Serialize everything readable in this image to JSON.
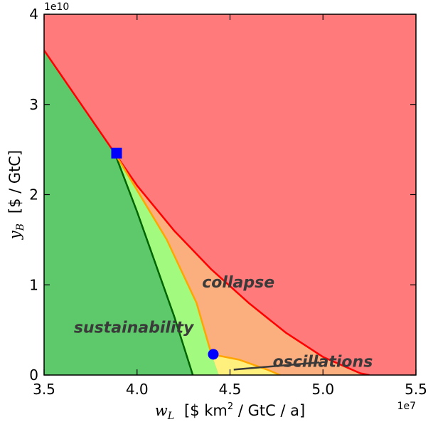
{
  "chart_data": {
    "type": "area",
    "title": "",
    "xlim": [
      35000000.0,
      55000000.0
    ],
    "ylim": [
      0,
      40000000000.0
    ],
    "xscale": "linear",
    "yscale": "linear",
    "grid": false,
    "xlabel": {
      "var": "w",
      "sub": "L",
      "text": "[$ km",
      "sup": "2",
      "rest": " / GtC / a]"
    },
    "ylabel": {
      "var": "y",
      "sub": "B",
      "text": "[$ / GtC]"
    },
    "x_ticks": {
      "values": [
        35000000.0,
        40000000.0,
        45000000.0,
        50000000.0,
        55000000.0
      ],
      "labels": [
        "3.5",
        "4.0",
        "4.5",
        "5.0",
        "5.5"
      ],
      "exponent_label": "1e7"
    },
    "y_ticks": {
      "values": [
        0,
        10000000000.0,
        20000000000.0,
        30000000000.0,
        40000000000.0
      ],
      "labels": [
        "0",
        "1",
        "2",
        "3",
        "4"
      ],
      "exponent_label": "1e10"
    },
    "colors": {
      "collapse": "#ff7b7b",
      "sustainability": "#5ec96a",
      "light_green": "#a2fb7e",
      "orange": "#fbae7e",
      "yellow": "#fff07e",
      "red_line": "#ff0000",
      "dark_green_line": "#006400",
      "orange_line": "#ffa500",
      "marker": "#0000ff",
      "annotation_line": "#3a3a3a"
    },
    "regions": [
      {
        "name": "collapse",
        "color_key": "collapse",
        "polygon": [
          [
            35000000.0,
            40000000000.0
          ],
          [
            55000000.0,
            40000000000.0
          ],
          [
            55000000.0,
            0
          ],
          [
            35000000.0,
            0
          ]
        ]
      },
      {
        "name": "orange-zone",
        "color_key": "orange",
        "polygon": [
          [
            38800000.0,
            24600000000.0
          ],
          [
            39500000.0,
            22500000000.0
          ],
          [
            40200000.0,
            20500000000.0
          ],
          [
            41000000.0,
            18500000000.0
          ],
          [
            42000000.0,
            16000000000.0
          ],
          [
            43000000.0,
            13800000000.0
          ],
          [
            44000000.0,
            11700000000.0
          ],
          [
            45000000.0,
            9800000000.0
          ],
          [
            46000000.0,
            8000000000.0
          ],
          [
            47000000.0,
            6200000000.0
          ],
          [
            48000000.0,
            4700000000.0
          ],
          [
            49000000.0,
            3300000000.0
          ],
          [
            50000000.0,
            2000000000.0
          ],
          [
            51000000.0,
            1000000000.0
          ],
          [
            52000000.0,
            200000000.0
          ],
          [
            52300000.0,
            0
          ],
          [
            44400000.0,
            0
          ],
          [
            44000000.0,
            2300000000.0
          ],
          [
            43200000.0,
            8000000000.0
          ],
          [
            41600000.0,
            15000000000.0
          ],
          [
            40000000.0,
            20500000000.0
          ]
        ]
      },
      {
        "name": "yellow-zone",
        "color_key": "yellow",
        "polygon": [
          [
            44000000.0,
            2300000000.0
          ],
          [
            45500000.0,
            1700000000.0
          ],
          [
            47000000.0,
            600000000.0
          ],
          [
            47700000.0,
            0
          ],
          [
            44400000.0,
            0
          ]
        ]
      },
      {
        "name": "sustainability",
        "color_key": "sustainability",
        "polygon": [
          [
            35000000.0,
            36000000000.0
          ],
          [
            38800000.0,
            24600000000.0
          ],
          [
            40000000.0,
            18100000000.0
          ],
          [
            41000000.0,
            12300000000.0
          ],
          [
            42000000.0,
            6500000000.0
          ],
          [
            43000000.0,
            0
          ],
          [
            35000000.0,
            0
          ]
        ]
      },
      {
        "name": "light-green-zone",
        "color_key": "light_green",
        "polygon": [
          [
            38800000.0,
            24600000000.0
          ],
          [
            40000000.0,
            20500000000.0
          ],
          [
            41600000.0,
            15000000000.0
          ],
          [
            43200000.0,
            8000000000.0
          ],
          [
            44000000.0,
            2300000000.0
          ],
          [
            44400000.0,
            0
          ],
          [
            43000000.0,
            0
          ],
          [
            42000000.0,
            6500000000.0
          ],
          [
            41000000.0,
            12300000000.0
          ],
          [
            40000000.0,
            18100000000.0
          ]
        ]
      }
    ],
    "series": [
      {
        "role": "collapse-boundary",
        "color_key": "red_line",
        "x": [
          35000000.0,
          37000000.0,
          38800000.0,
          40000000.0,
          42000000.0,
          44000000.0,
          46000000.0,
          48000000.0,
          50000000.0,
          52000000.0,
          52500000.0
        ],
        "y": [
          36000000000.0,
          30000000000.0,
          24600000000.0,
          21000000000.0,
          16000000000.0,
          11700000000.0,
          8000000000.0,
          4700000000.0,
          2000000000.0,
          200000000.0,
          0
        ]
      },
      {
        "role": "sustainability-boundary",
        "color_key": "dark_green_line",
        "x": [
          38800000.0,
          40000000.0,
          41000000.0,
          42000000.0,
          43000000.0
        ],
        "y": [
          24600000000.0,
          18100000000.0,
          12300000000.0,
          6500000000.0,
          0
        ]
      },
      {
        "role": "orange-boundary",
        "color_key": "orange_line",
        "x": [
          38800000.0,
          40000000.0,
          41600000.0,
          43200000.0,
          44000000.0
        ],
        "y": [
          24600000000.0,
          20500000000.0,
          15000000000.0,
          8000000000.0,
          2300000000.0
        ]
      },
      {
        "role": "oscillation-boundary",
        "color_key": "orange_line",
        "x": [
          44000000.0,
          45500000.0,
          47000000.0,
          47700000.0
        ],
        "y": [
          2300000000.0,
          1700000000.0,
          600000000.0,
          0
        ]
      }
    ],
    "points": [
      {
        "marker": "square",
        "x": 38900000.0,
        "y": 24600000000.0
      },
      {
        "marker": "circle",
        "x": 44100000.0,
        "y": 2300000000.0
      }
    ],
    "annotations": [
      {
        "text": "collapse",
        "x": 43500000.0,
        "y": 9700000000.0
      },
      {
        "text": "sustainability",
        "x": 36600000.0,
        "y": 4700000000.0
      },
      {
        "text": "oscillations",
        "x": 47300000.0,
        "y": 900000000.0,
        "pointer": [
          [
            49800000.0,
            1400000000.0
          ],
          [
            45200000.0,
            600000000.0
          ]
        ]
      }
    ]
  }
}
